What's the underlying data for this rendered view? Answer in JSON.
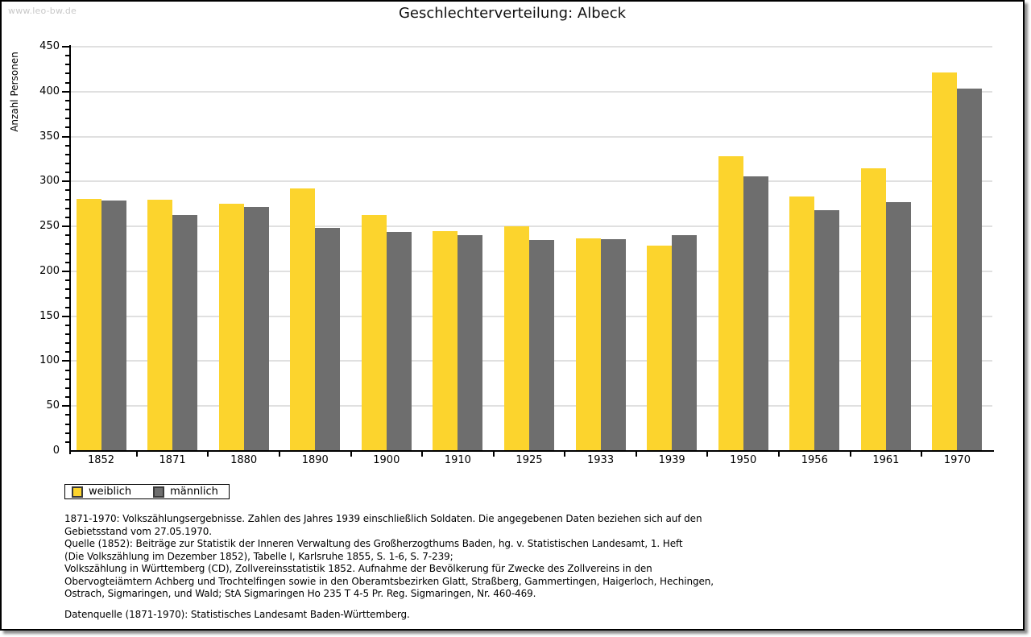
{
  "watermark": "www.leo-bw.de",
  "chart_data": {
    "type": "bar",
    "title": "Geschlechterverteilung: Albeck",
    "xlabel": "",
    "ylabel": "Anzahl Personen",
    "categories": [
      "1852",
      "1871",
      "1880",
      "1890",
      "1900",
      "1910",
      "1925",
      "1933",
      "1939",
      "1950",
      "1956",
      "1961",
      "1970"
    ],
    "series": [
      {
        "name": "weiblich",
        "color": "#FCD42D",
        "values": [
          281,
          280,
          275,
          292,
          263,
          245,
          250,
          237,
          229,
          328,
          283,
          315,
          421
        ]
      },
      {
        "name": "männlich",
        "color": "#6E6E6E",
        "values": [
          279,
          263,
          272,
          248,
          244,
          240,
          235,
          236,
          240,
          306,
          268,
          277,
          403
        ]
      }
    ],
    "ylim": [
      0,
      450
    ],
    "ytick_step": 50,
    "yminor_step": 10,
    "grid": true,
    "gridline_color": "#e0e0e0",
    "legend_position": "bottom-left"
  },
  "footnote": {
    "lines": [
      "1871-1970: Volkszählungsergebnisse. Zahlen des Jahres 1939 einschließlich Soldaten. Die angegebenen Daten beziehen sich auf den",
      "Gebietsstand vom 27.05.1970.",
      "Quelle (1852): Beiträge zur Statistik der Inneren Verwaltung des Großherzogthums Baden, hg. v. Statistischen Landesamt, 1. Heft",
      "(Die Volkszählung im Dezember 1852), Tabelle I, Karlsruhe 1855, S. 1-6, S. 7-239;",
      "Volkszählung in Württemberg (CD), Zollvereinsstatistik 1852. Aufnahme der Bevölkerung für Zwecke des Zollvereins in den",
      "Obervogteiämtern Achberg und Trochtelfingen sowie in den Oberamtsbezirken Glatt, Straßberg, Gammertingen, Haigerloch, Hechingen,",
      "Ostrach, Sigmaringen, und Wald; StA Sigmaringen Ho 235 T 4-5 Pr. Reg. Sigmaringen, Nr. 460-469."
    ],
    "datasource": "Datenquelle (1871-1970): Statistisches Landesamt Baden-Württemberg."
  }
}
